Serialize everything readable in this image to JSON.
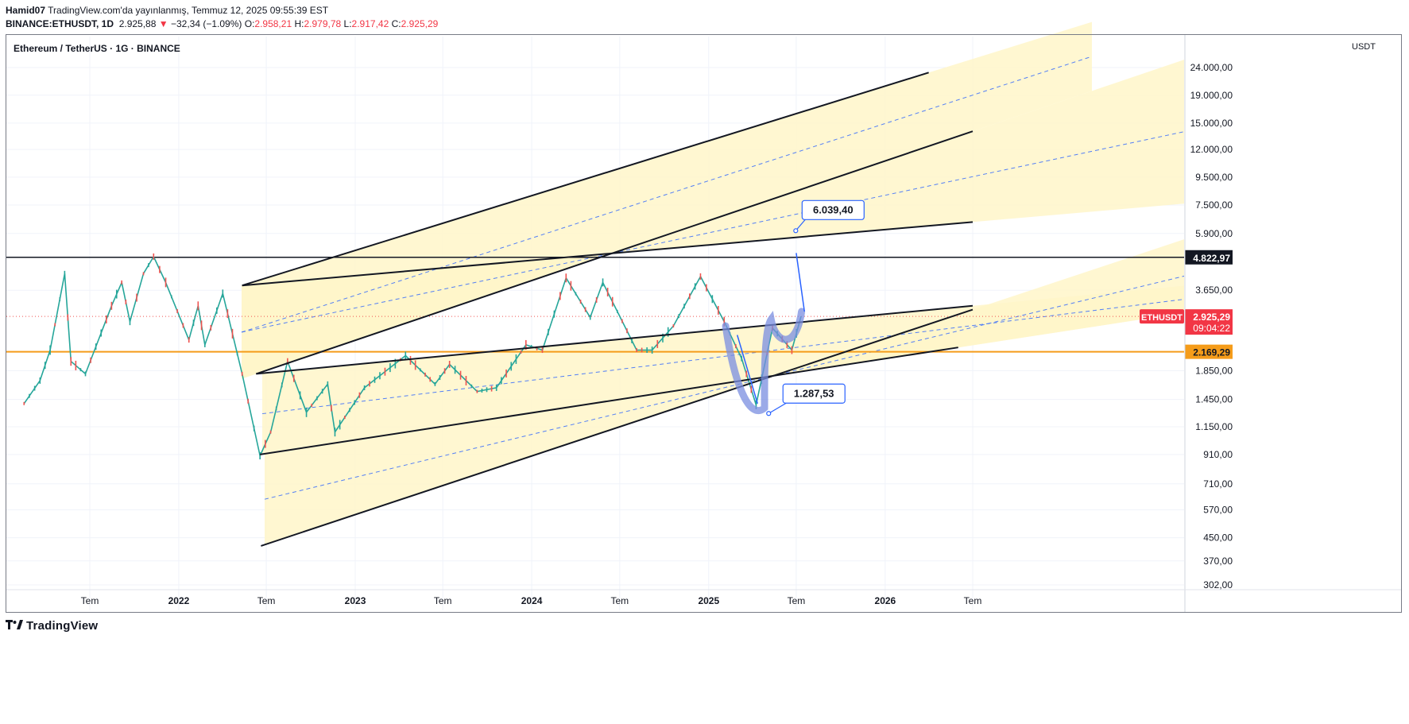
{
  "header": {
    "author": "Hamid07",
    "published": "TradingView.com'da yayınlanmış, Temmuz 12, 2025 09:55:39 EST",
    "symbol": "BINANCE:ETHUSDT, 1D",
    "last": "2.925,88",
    "change_arrow": "▼",
    "change": "−32,34 (−1.09%)",
    "o_label": "O:",
    "o": "2.958,21",
    "h_label": "H:",
    "h": "2.979,78",
    "l_label": "L:",
    "l": "2.917,42",
    "c_label": "C:",
    "c": "2.925,29"
  },
  "legend_title": "Ethereum / TetherUS · 1G · BINANCE",
  "footer_brand": "TradingView",
  "colors": {
    "up": "#26a69a",
    "down": "#ef5350",
    "channel_fill": "#fff6c9",
    "dashed": "#2962ff",
    "orange": "#f59c1a",
    "brush": "#7a8ee0"
  },
  "chart_data": {
    "type": "line",
    "unit": "USDT",
    "y_scale": "log",
    "y_ticks": [
      24000,
      19000,
      15000,
      12000,
      9500,
      7500,
      5900,
      3650,
      1850,
      1450,
      1150,
      910,
      710,
      570,
      450,
      370,
      302
    ],
    "y_tick_labels": [
      "24.000,00",
      "19.000,00",
      "15.000,00",
      "12.000,00",
      "9.500,00",
      "7.500,00",
      "5.900,00",
      "3.650,00",
      "1.850,00",
      "1.450,00",
      "1.150,00",
      "910,00",
      "710,00",
      "570,00",
      "450,00",
      "370,00",
      "302,00"
    ],
    "x_ticks": [
      {
        "label": "Tem",
        "date": "2021-07-01"
      },
      {
        "label": "2022",
        "date": "2022-01-01",
        "year": true
      },
      {
        "label": "Tem",
        "date": "2022-07-01"
      },
      {
        "label": "2023",
        "date": "2023-01-01",
        "year": true
      },
      {
        "label": "Tem",
        "date": "2023-07-01"
      },
      {
        "label": "2024",
        "date": "2024-01-01",
        "year": true
      },
      {
        "label": "Tem",
        "date": "2024-07-01"
      },
      {
        "label": "2025",
        "date": "2025-01-01",
        "year": true
      },
      {
        "label": "Tem",
        "date": "2025-07-01"
      },
      {
        "label": "2026",
        "date": "2026-01-01",
        "year": true
      },
      {
        "label": "Tem",
        "date": "2026-07-01"
      }
    ],
    "price_series": {
      "name": "ETHUSDT",
      "points": [
        [
          "2021-02-15",
          1400
        ],
        [
          "2021-03-20",
          1700
        ],
        [
          "2021-04-10",
          2200
        ],
        [
          "2021-05-10",
          4200
        ],
        [
          "2021-05-23",
          2000
        ],
        [
          "2021-06-22",
          1800
        ],
        [
          "2021-08-15",
          3200
        ],
        [
          "2021-09-05",
          3900
        ],
        [
          "2021-09-22",
          2800
        ],
        [
          "2021-10-20",
          4200
        ],
        [
          "2021-11-10",
          4850
        ],
        [
          "2021-12-05",
          3900
        ],
        [
          "2022-01-22",
          2400
        ],
        [
          "2022-02-10",
          3200
        ],
        [
          "2022-02-24",
          2300
        ],
        [
          "2022-04-02",
          3550
        ],
        [
          "2022-05-12",
          1800
        ],
        [
          "2022-06-18",
          900
        ],
        [
          "2022-07-10",
          1100
        ],
        [
          "2022-08-14",
          2000
        ],
        [
          "2022-09-22",
          1300
        ],
        [
          "2022-11-05",
          1650
        ],
        [
          "2022-11-20",
          1100
        ],
        [
          "2023-01-20",
          1600
        ],
        [
          "2023-04-15",
          2100
        ],
        [
          "2023-06-15",
          1650
        ],
        [
          "2023-07-15",
          1950
        ],
        [
          "2023-09-10",
          1550
        ],
        [
          "2023-10-20",
          1600
        ],
        [
          "2023-12-20",
          2300
        ],
        [
          "2024-01-23",
          2200
        ],
        [
          "2024-03-12",
          4050
        ],
        [
          "2024-05-01",
          2900
        ],
        [
          "2024-05-27",
          3900
        ],
        [
          "2024-08-05",
          2200
        ],
        [
          "2024-09-06",
          2200
        ],
        [
          "2024-10-20",
          2700
        ],
        [
          "2024-12-15",
          4100
        ],
        [
          "2025-02-02",
          2800
        ],
        [
          "2025-03-10",
          2050
        ],
        [
          "2025-04-09",
          1385
        ],
        [
          "2025-05-13",
          2650
        ],
        [
          "2025-06-22",
          2200
        ],
        [
          "2025-07-11",
          2925.29
        ]
      ]
    },
    "channels": [
      {
        "role": "lower",
        "start": [
          "2022-06-18",
          910
        ],
        "end": [
          "2026-06-01",
          2250
        ]
      },
      {
        "role": "middle",
        "start": [
          "2022-06-10",
          1800
        ],
        "end": [
          "2026-07-01",
          3200
        ]
      },
      {
        "role": "upper",
        "start": [
          "2022-05-12",
          3800
        ],
        "end": [
          "2026-07-01",
          6500
        ]
      },
      {
        "role": "bottom",
        "start": [
          "2022-06-20",
          420
        ],
        "end": [
          "2026-07-01",
          3100
        ]
      },
      {
        "role": "top",
        "start": [
          "2022-05-12",
          3800
        ],
        "end": [
          "2026-04-01",
          23000
        ]
      },
      {
        "role": "top2",
        "start": [
          "2022-06-10",
          1800
        ],
        "end": [
          "2026-07-01",
          14000
        ]
      }
    ],
    "horizontal_lines": [
      {
        "name": "resistance",
        "value": 4822.97,
        "label": "4.822,97",
        "color": "#131722"
      },
      {
        "name": "support",
        "value": 2169.29,
        "label": "2.169,29",
        "color": "#f59c1a"
      }
    ],
    "current": {
      "symbol": "ETHUSDT",
      "price_label": "2.925,29",
      "countdown": "09:04:22",
      "value": 2925.29
    },
    "callouts": [
      {
        "label": "6.039,40",
        "date": "2025-06-30",
        "value": 6039.4
      },
      {
        "label": "1.287,53",
        "date": "2025-05-05",
        "value": 1287.53
      }
    ]
  }
}
